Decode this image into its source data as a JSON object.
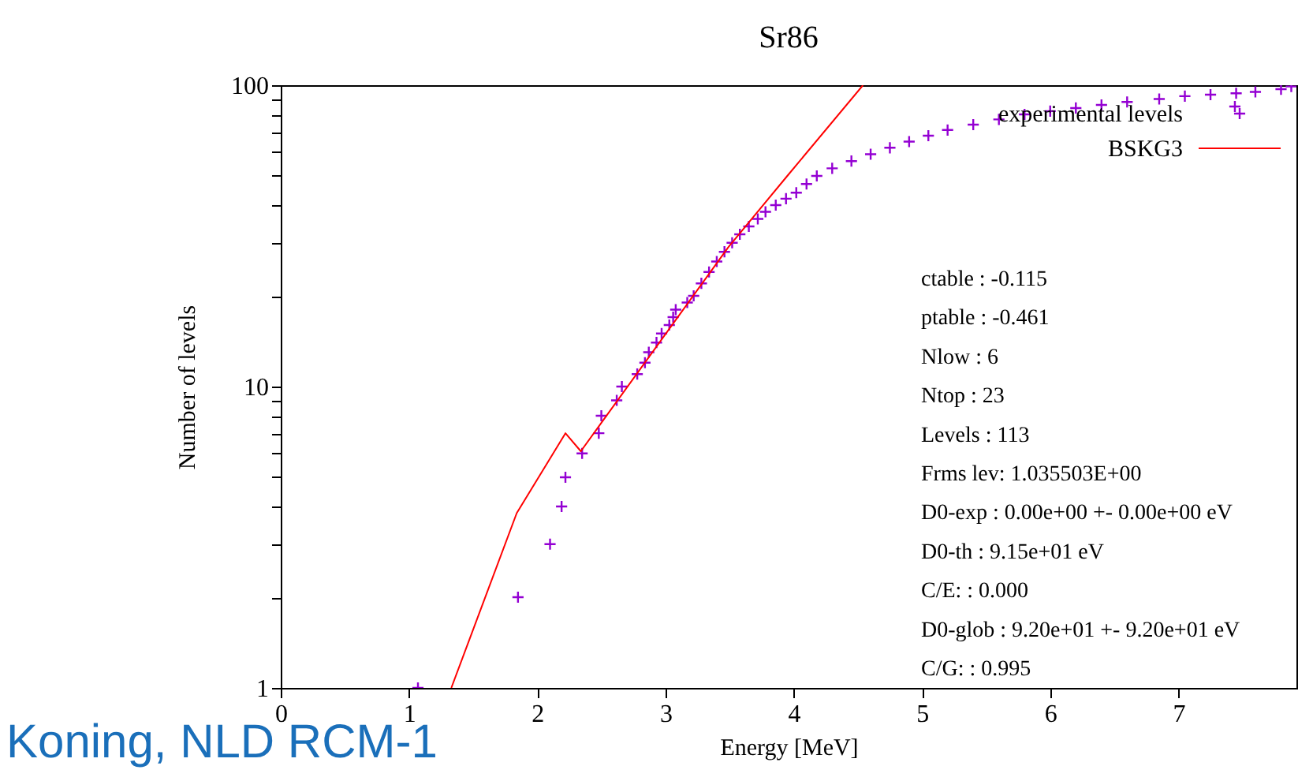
{
  "chart_data": {
    "type": "scatter",
    "title": "Sr86",
    "xlabel": "Energy [MeV]",
    "ylabel": "Number of levels",
    "xlim": [
      0,
      7.92
    ],
    "xticks": [
      0,
      1,
      2,
      3,
      4,
      5,
      6,
      7
    ],
    "ylim": [
      1,
      100
    ],
    "log": "y",
    "yticks": [
      1,
      {
        "value": 2,
        "label": null
      },
      {
        "value": 3,
        "label": null
      },
      {
        "value": 4,
        "label": null
      },
      {
        "value": 5,
        "label": null
      },
      {
        "value": 6,
        "label": null
      },
      {
        "value": 7,
        "label": null
      },
      {
        "value": 8,
        "label": null
      },
      {
        "value": 9,
        "label": null
      },
      10,
      {
        "value": 20,
        "label": null
      },
      {
        "value": 30,
        "label": null
      },
      {
        "value": 40,
        "label": null
      },
      {
        "value": 50,
        "label": null
      },
      {
        "value": 60,
        "label": null
      },
      {
        "value": 70,
        "label": null
      },
      {
        "value": 80,
        "label": null
      },
      {
        "value": 90,
        "label": null
      },
      100
    ],
    "grid": false,
    "legend": "top right",
    "marker": "cross",
    "series": [
      {
        "name": "experimental levels",
        "color": "#9400d3",
        "x": [
          1.07,
          1.85,
          2.1,
          2.19,
          2.22,
          2.35,
          2.48,
          2.5,
          2.62,
          2.66,
          2.78,
          2.84,
          2.87,
          2.93,
          2.97,
          3.03,
          3.06,
          3.08,
          3.17,
          3.22,
          3.28,
          3.34,
          3.4,
          3.46,
          3.52,
          3.58,
          3.65,
          3.72,
          3.78,
          3.86,
          3.94,
          4.02,
          4.1,
          4.18,
          4.3,
          4.45,
          4.6,
          4.75,
          4.9,
          5.05,
          5.2,
          5.4,
          5.6,
          5.8,
          6.0,
          6.2,
          6.4,
          6.6,
          6.85,
          7.05,
          7.25,
          7.44,
          7.45,
          7.6,
          7.8,
          7.88
        ],
        "values": [
          1,
          2,
          3,
          4,
          5,
          6,
          7,
          8,
          9,
          10,
          11,
          12,
          13,
          14,
          15,
          16,
          17,
          18,
          19,
          20,
          22,
          24,
          26,
          28,
          30,
          32,
          34,
          36,
          38,
          40,
          42,
          44,
          47,
          50,
          53,
          56,
          59,
          62,
          65,
          68,
          71,
          74,
          77,
          80,
          82,
          84,
          86,
          88,
          90,
          92,
          93,
          85,
          94,
          95,
          97,
          99
        ]
      },
      {
        "name": "BSKG3",
        "type": "line",
        "color": "#ff0000",
        "marker": "none",
        "line_style": "solid",
        "x": [
          1.33,
          1.84,
          2.22,
          2.34,
          3.49,
          3.95,
          4.54
        ],
        "values": [
          1,
          3.8,
          7.0,
          6.1,
          29,
          50,
          100
        ]
      }
    ],
    "annotations": [
      "ctable  : -0.115",
      "ptable  : -0.461",
      "Nlow    : 6",
      "Ntop    : 23",
      "Levels  : 113",
      "Frms lev: 1.035503E+00",
      "D0-exp  : 0.00e+00 +- 0.00e+00 eV",
      "D0-th    : 9.15e+01  eV",
      "C/E:      :  0.000",
      "D0-glob : 9.20e+01 +- 9.20e+01 eV",
      "C/G:      :  0.995",
      "Koning, NLD RCM-1"
    ]
  }
}
